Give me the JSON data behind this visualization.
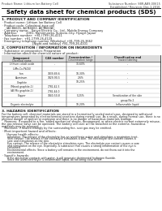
{
  "header_left": "Product Name: Lithium Ion Battery Cell",
  "header_right1": "Substance Number: SBR-AB9-00615",
  "header_right2": "Established / Revision: Dec.1.2016",
  "title": "Safety data sheet for chemical products (SDS)",
  "s1_title": "1. PRODUCT AND COMPANY IDENTIFICATION",
  "s1_lines": [
    "· Product name: Lithium Ion Battery Cell",
    "· Product code: Cylindrical-type cell",
    "    (All B6601, All B6602, All B660A)",
    "· Company name:   Sanyo Electric Co., Ltd., Mobile Energy Company",
    "· Address:          2001, Kamimurako, Sumoto-City, Hyogo, Japan",
    "· Telephone number:  +81-(799)-26-4111",
    "· Fax number:  +81-1799-26-4129",
    "· Emergency telephone number (Weekday) +81-799-26-3662",
    "                                 [Night and holiday] +81-799-26-4101"
  ],
  "s2_title": "2. COMPOSITION / INFORMATION ON INGREDIENTS",
  "s2_sub1": "· Substance or preparation: Preparation",
  "s2_sub2": "· Information about the chemical nature of product:",
  "tbl_h1": "Component",
  "tbl_h1b": "Chemical name",
  "tbl_h2": "CAS number",
  "tbl_h3": "Concentration /",
  "tbl_h3b": "Concentration range",
  "tbl_h4": "Classification and",
  "tbl_h4b": "hazard labeling",
  "tbl_rows": [
    [
      "Lithium cobalt oxide",
      "-",
      "30-60%",
      "-"
    ],
    [
      "(LiMn-Co-PbO4)",
      "",
      "",
      ""
    ],
    [
      "Iron",
      "7439-89-6",
      "10-30%",
      "-"
    ],
    [
      "Aluminum",
      "7429-90-5",
      "2-6%",
      "-"
    ],
    [
      "Graphite",
      "",
      "10-25%",
      "-"
    ],
    [
      "(Mined graphite-1)",
      "7782-42-5",
      "",
      ""
    ],
    [
      "(All Mo graphite-1)",
      "7782-44-0",
      "",
      ""
    ],
    [
      "Copper",
      "7440-50-8",
      "5-15%",
      "Sensitization of the skin"
    ],
    [
      "",
      "",
      "",
      "group No.2"
    ],
    [
      "Organic electrolyte",
      "-",
      "10-20%",
      "Inflammable liquid"
    ]
  ],
  "s3_title": "3. HAZARDS IDENTIFICATION",
  "s3_lines": [
    "For the battery cell, chemical materials are stored in a hermetically sealed metal case, designed to withstand",
    "temperatures generated by electrochemical reactions during normal use. As a result, during normal use, there is no",
    "physical danger of ignition or explosion and there is no danger of hazardous materials leakage.",
    "   However, if exposed to a fire, added mechanical shocks, decomposed, or when electric current extremely misuse,",
    "the gas release valve can be operated. The battery cell case will be breached at the extreme, hazardous",
    "materials may be released.",
    "   Moreover, if heated strongly by the surrounding fire, soot gas may be emitted."
  ],
  "s3_b1": "· Most important hazard and effects:",
  "s3_b1_sub": "   Human health effects:",
  "s3_b1_lines": [
    "      Inhalation: The release of the electrolyte has an anesthesia action and stimulates a respiratory tract.",
    "      Skin contact: The release of the electrolyte stimulates a skin. The electrolyte skin contact causes a",
    "      sore and stimulation on the skin.",
    "      Eye contact: The release of the electrolyte stimulates eyes. The electrolyte eye contact causes a sore",
    "      and stimulation on the eye. Especially, a substance that causes a strong inflammation of the eye is",
    "      contained.",
    "      Environmental effects: Since a battery cell remains in the environment, do not throw out it into the",
    "      environment."
  ],
  "s3_b2": "· Specific hazards:",
  "s3_b2_lines": [
    "      If the electrolyte contacts with water, it will generate detrimental hydrogen fluoride.",
    "      Since the used electrolyte is inflammable liquid, do not bring close to fire."
  ]
}
